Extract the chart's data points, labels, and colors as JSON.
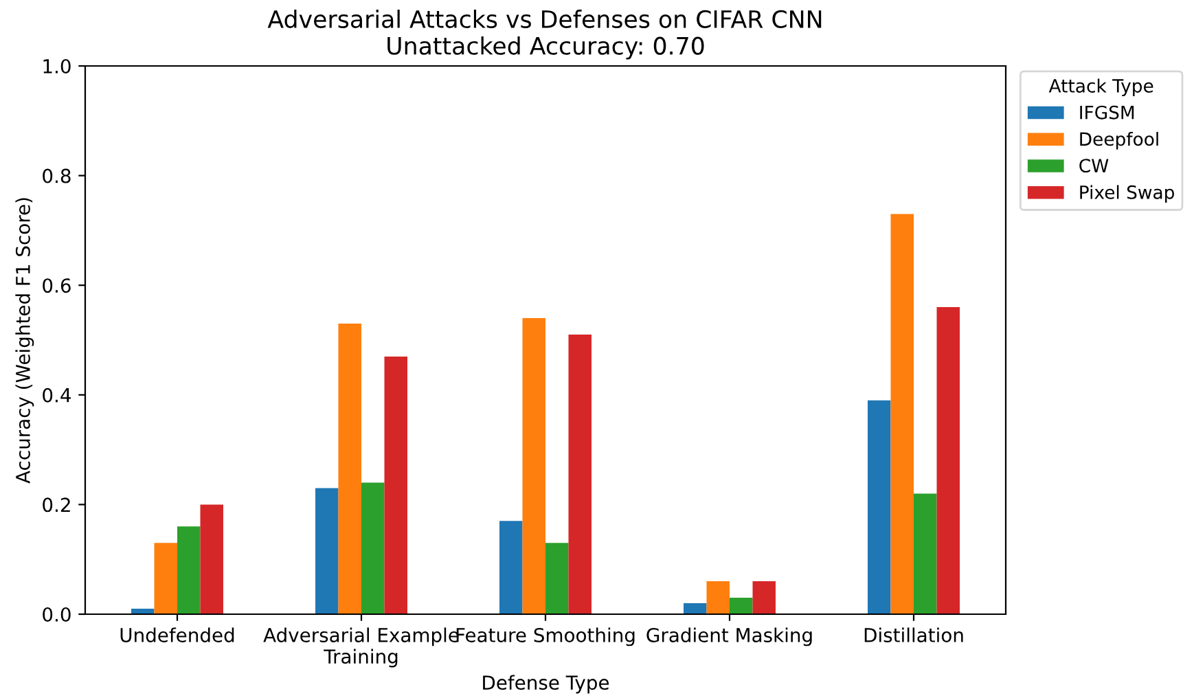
{
  "chart_data": {
    "type": "bar",
    "title": "Adversarial Attacks vs Defenses on CIFAR CNN\nUnattacked Accuracy: 0.70",
    "xlabel": "Defense Type",
    "ylabel": "Accuracy (Weighted F1 Score)",
    "legend_title": "Attack Type",
    "categories": [
      "Undefended",
      "Adversarial Example\nTraining",
      "Feature Smoothing",
      "Gradient Masking",
      "Distillation"
    ],
    "series": [
      {
        "name": "IFGSM",
        "color": "#1f77b4",
        "values": [
          0.01,
          0.23,
          0.17,
          0.02,
          0.39
        ]
      },
      {
        "name": "Deepfool",
        "color": "#ff7f0e",
        "values": [
          0.13,
          0.53,
          0.54,
          0.06,
          0.73
        ]
      },
      {
        "name": "CW",
        "color": "#2ca02c",
        "values": [
          0.16,
          0.24,
          0.13,
          0.03,
          0.22
        ]
      },
      {
        "name": "Pixel Swap",
        "color": "#d62728",
        "values": [
          0.2,
          0.47,
          0.51,
          0.06,
          0.56
        ]
      }
    ],
    "ylim": [
      0,
      1.0
    ],
    "yticks": [
      {
        "value": 0,
        "label": "0.0"
      },
      {
        "value": 0.2,
        "label": "0.2"
      },
      {
        "value": 0.4,
        "label": "0.4"
      },
      {
        "value": 0.6,
        "label": "0.6"
      },
      {
        "value": 0.8,
        "label": "0.8"
      },
      {
        "value": 1.0,
        "label": "1.0"
      }
    ],
    "grid": false,
    "legend": "top right"
  }
}
